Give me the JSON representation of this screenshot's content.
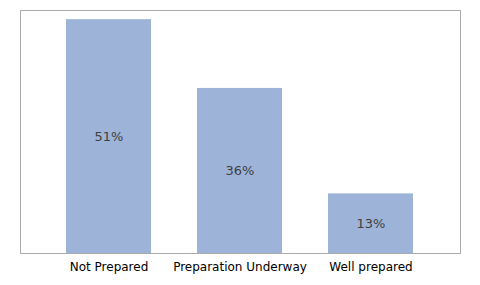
{
  "chart_data": {
    "type": "bar",
    "categories": [
      "Not Prepared",
      "Preparation Underway",
      "Well prepared"
    ],
    "values": [
      51,
      36,
      13
    ],
    "value_labels": [
      "51%",
      "36%",
      "13%"
    ],
    "data_labels": true,
    "color": "#9db3d8",
    "ylim": [
      0,
      53
    ],
    "tick_labels": "x"
  }
}
